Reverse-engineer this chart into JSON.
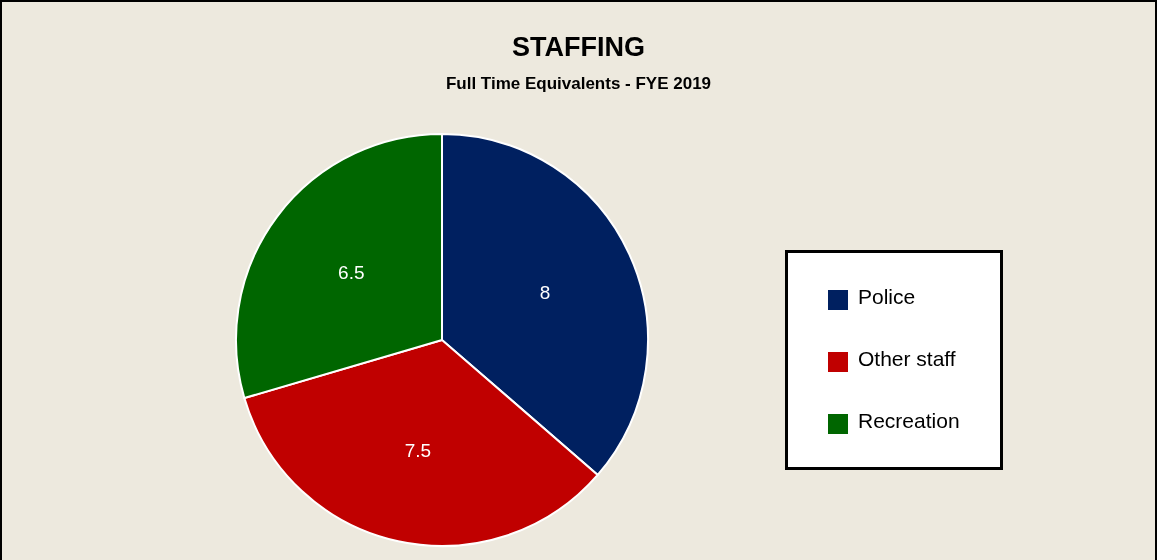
{
  "chart_data": {
    "type": "pie",
    "title": "STAFFING",
    "subtitle": "Full Time Equivalents - FYE 2019",
    "categories": [
      "Police",
      "Other staff",
      "Recreation"
    ],
    "values": [
      8,
      7.5,
      6.5
    ],
    "colors": [
      "#002060",
      "#c00000",
      "#006600"
    ],
    "data_labels": true,
    "legend": "right"
  }
}
